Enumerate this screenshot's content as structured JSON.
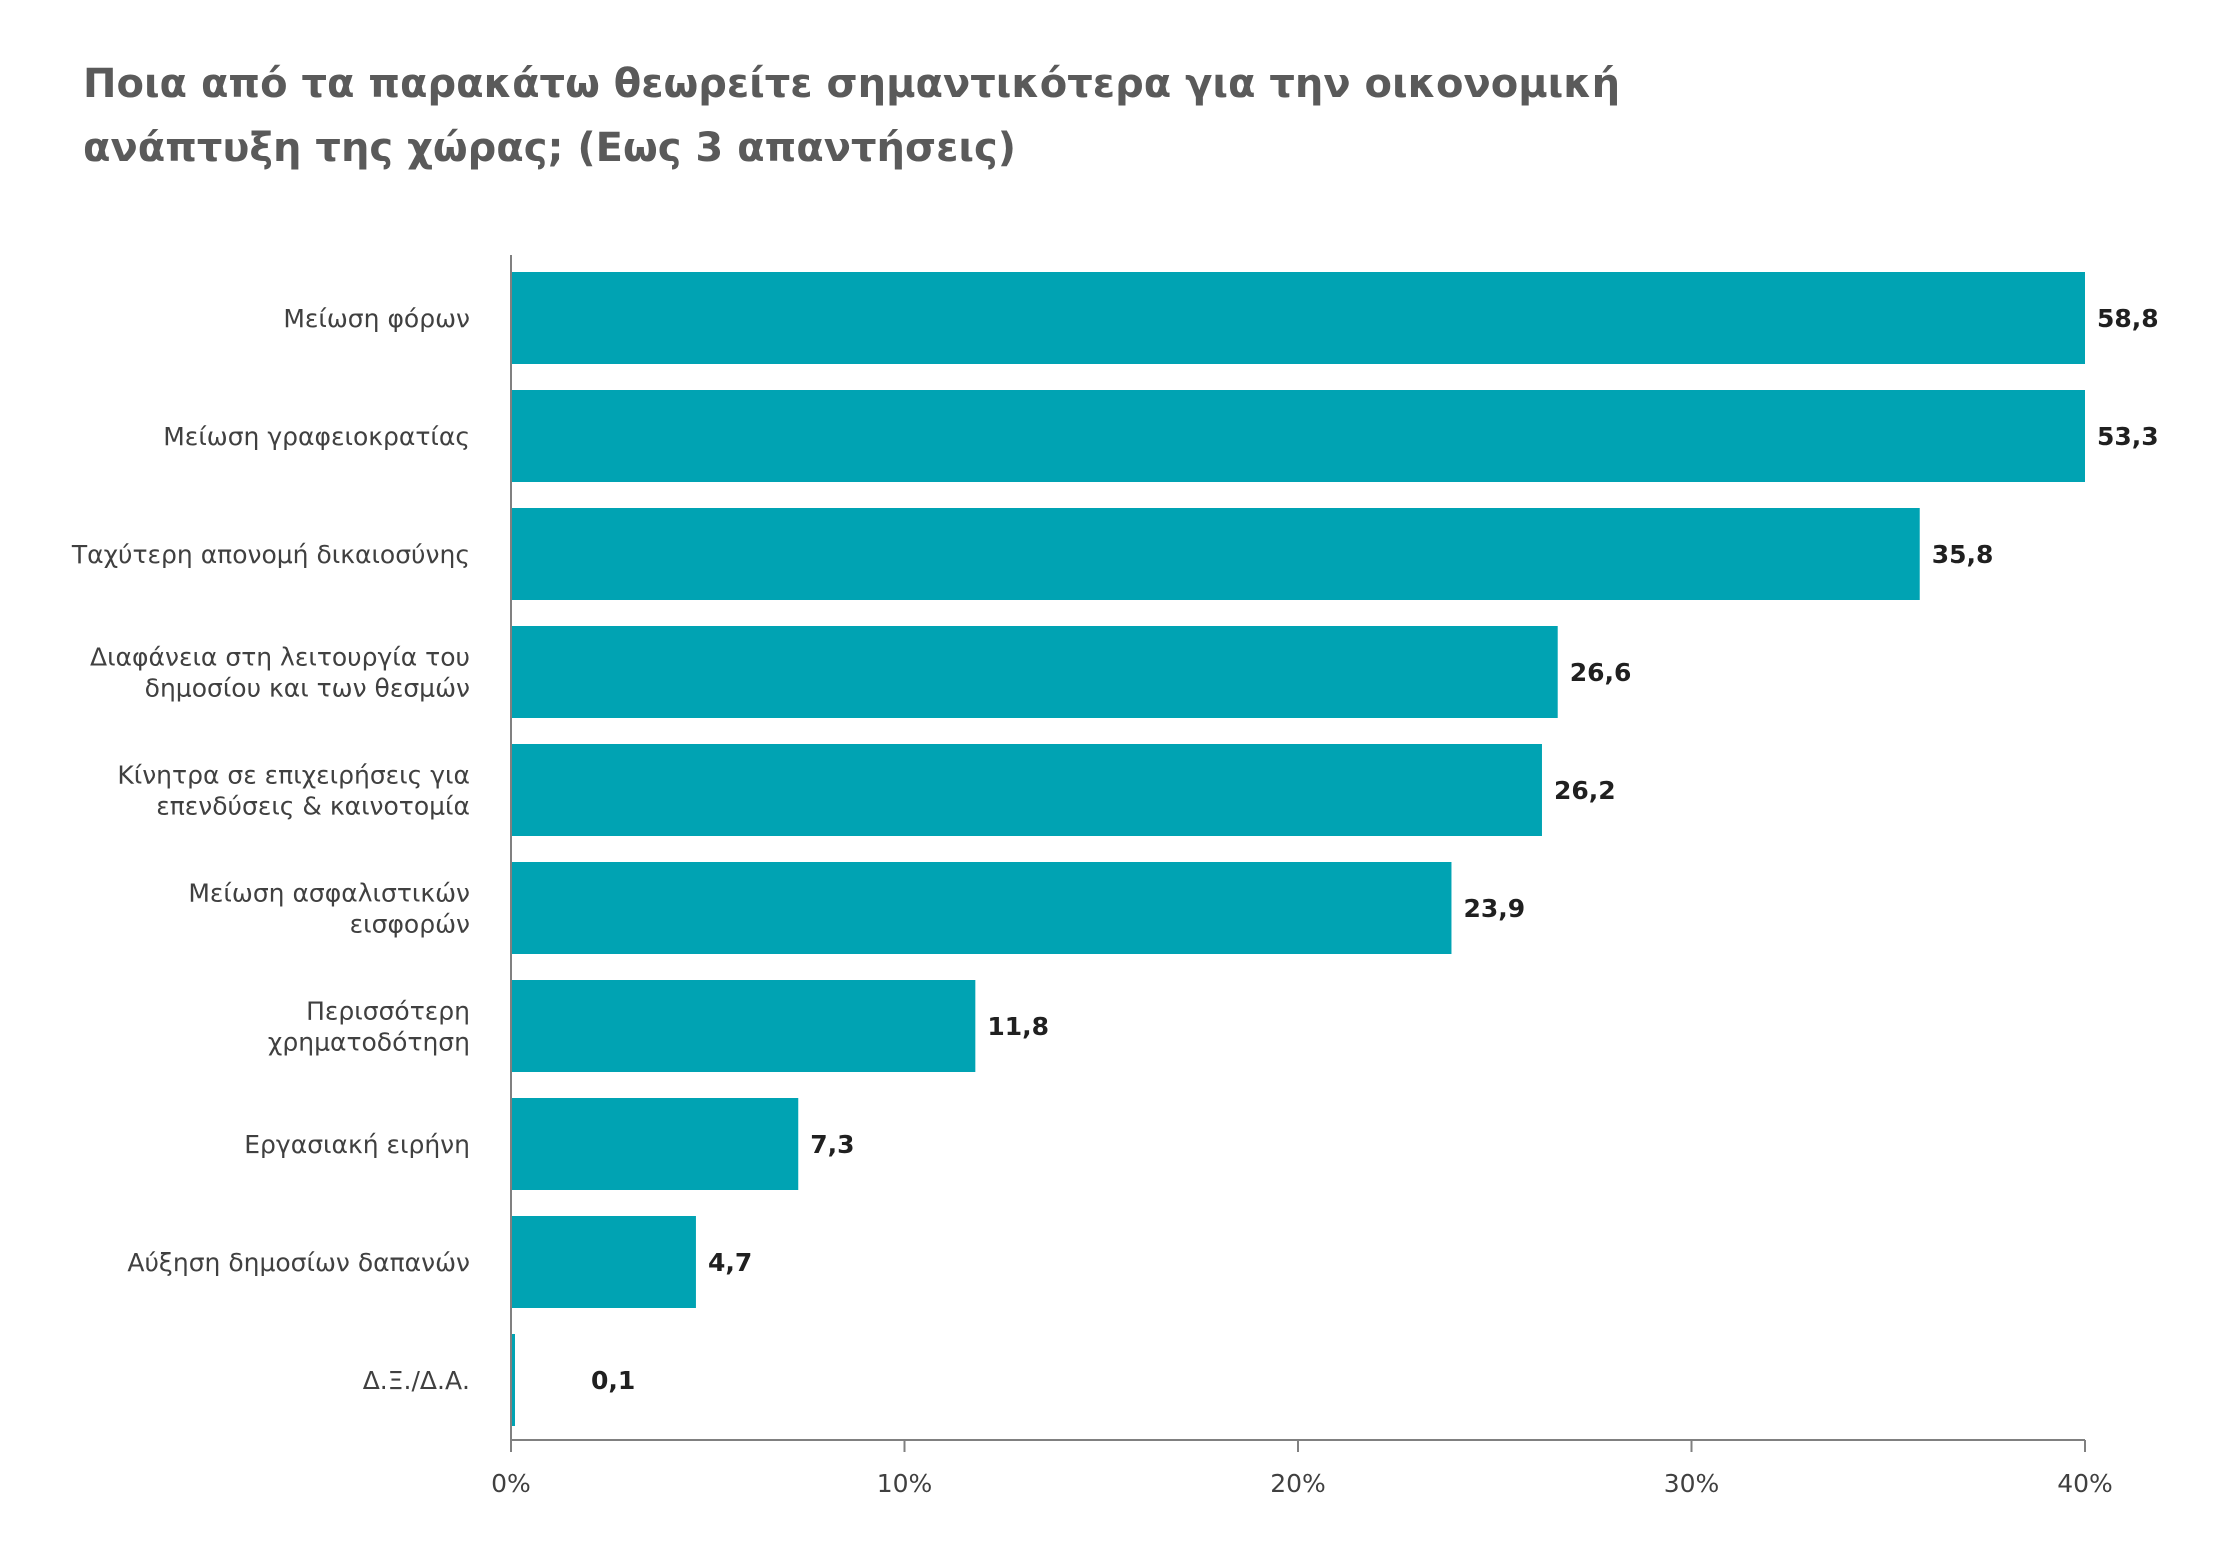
{
  "chart_data": {
    "type": "bar",
    "orientation": "horizontal",
    "title_lines": [
      "Ποια από τα παρακάτω θεωρείτε σημαντικότερα για την οικονομική",
      "ανάπτυξη της χώρας; (Εως 3 απαντήσεις)"
    ],
    "categories": [
      [
        "Μείωση φόρων"
      ],
      [
        "Μείωση γραφειοκρατίας"
      ],
      [
        "Ταχύτερη απονομή δικαιοσύνης"
      ],
      [
        "Διαφάνεια στη λειτουργία του",
        "δημοσίου και των θεσμών"
      ],
      [
        "Κίνητρα σε επιχειρήσεις για",
        "επενδύσεις & καινοτομία"
      ],
      [
        "Μείωση ασφαλιστικών",
        "εισφορών"
      ],
      [
        "Περισσότερη",
        "χρηματοδότηση"
      ],
      [
        "Εργασιακή ειρήνη"
      ],
      [
        "Αύξηση δημοσίων δαπανών"
      ],
      [
        "Δ.Ξ./Δ.Α."
      ]
    ],
    "values": [
      58.8,
      53.3,
      35.8,
      26.6,
      26.2,
      23.9,
      11.8,
      7.3,
      4.7,
      0.1
    ],
    "value_labels": [
      "58,8",
      "53,3",
      "35,8",
      "26,6",
      "26,2",
      "23,9",
      "11,8",
      "7,3",
      "4,7",
      "0,1"
    ],
    "x_ticks": [
      "0%",
      "10%",
      "20%",
      "30%",
      "40%"
    ],
    "x_tick_values": [
      0,
      10,
      20,
      30,
      40
    ],
    "xlim": [
      0,
      40
    ],
    "bars_clipped_at_axis_max": true,
    "grid": false,
    "bar_color": "#00a3b3",
    "axis_color": "#808080"
  }
}
